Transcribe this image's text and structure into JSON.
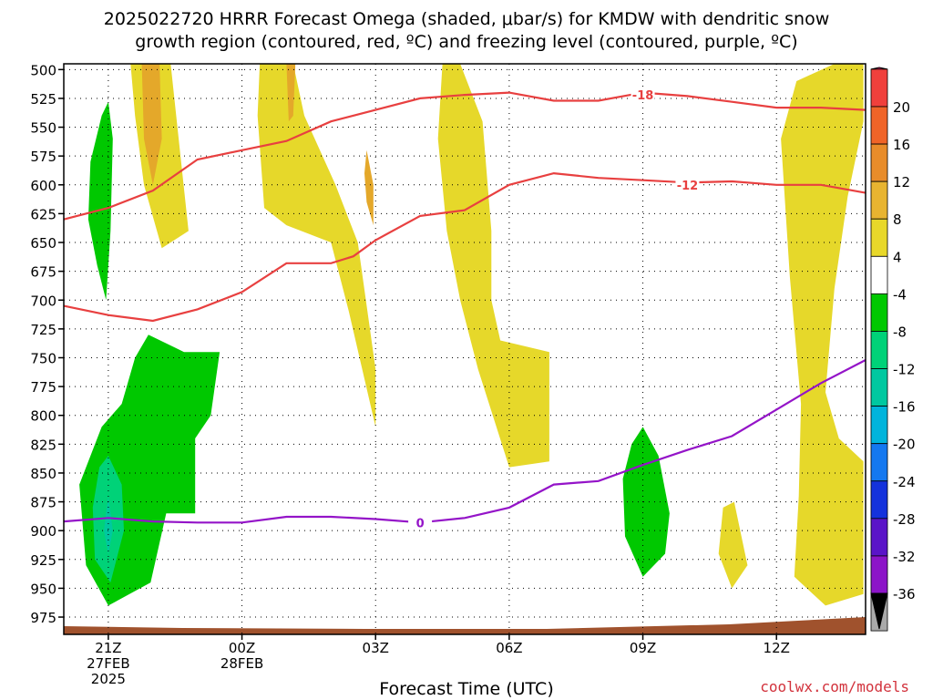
{
  "title_line1": "2025022720 HRRR Forecast Omega (shaded, μbar/s) for KMDW with dendritic snow",
  "title_line2": "growth region (contoured, red, ºC) and freezing level (contoured, purple, ºC)",
  "xlabel": "Forecast Time (UTC)",
  "credit": "coolwx.com/models",
  "chart_data": {
    "type": "heatmap",
    "title": "2025022720 HRRR Forecast Omega (shaded, μbar/s) for KMDW with dendritic snow growth region (contoured, red, ºC) and freezing level (contoured, purple, ºC)",
    "xlabel": "Forecast Time (UTC)",
    "ylabel": "",
    "x_unit": "forecast hour",
    "xlim": [
      0,
      18
    ],
    "ylim": [
      990,
      495
    ],
    "x_ticks": [
      {
        "hour": 1,
        "lines": [
          "21Z",
          "27FEB",
          "2025"
        ]
      },
      {
        "hour": 4,
        "lines": [
          "00Z",
          "28FEB"
        ]
      },
      {
        "hour": 7,
        "lines": [
          "03Z"
        ]
      },
      {
        "hour": 10,
        "lines": [
          "06Z"
        ]
      },
      {
        "hour": 13,
        "lines": [
          "09Z"
        ]
      },
      {
        "hour": 16,
        "lines": [
          "12Z"
        ]
      }
    ],
    "y_ticks": [
      500,
      525,
      550,
      575,
      600,
      625,
      650,
      675,
      700,
      725,
      750,
      775,
      800,
      825,
      850,
      875,
      900,
      925,
      950,
      975
    ],
    "grid": true,
    "colorbar": {
      "labels": [
        "20",
        "16",
        "12",
        "8",
        "4",
        "-4",
        "-8",
        "-12",
        "-16",
        "-20",
        "-24",
        "-28",
        "-32",
        "-36"
      ],
      "colors": [
        "#e8107a",
        "#f0403c",
        "#f06428",
        "#e88c2a",
        "#e8b430",
        "#e8d82a",
        "#ffffff",
        "#00c800",
        "#00d278",
        "#00c8a0",
        "#00b4dc",
        "#1478f0",
        "#1432dc",
        "#5a14c8",
        "#8c14c8",
        "#aaaaaa",
        "#000000"
      ]
    },
    "omega_areas": [
      {
        "level": "4",
        "color": "#e6d82a",
        "points": [
          [
            1.5,
            495
          ],
          [
            2.4,
            495
          ],
          [
            2.8,
            640
          ],
          [
            2.2,
            655
          ],
          [
            1.8,
            600
          ],
          [
            1.6,
            540
          ]
        ]
      },
      {
        "level": "8",
        "color": "#e4a82a",
        "points": [
          [
            1.75,
            495
          ],
          [
            2.15,
            495
          ],
          [
            2.2,
            560
          ],
          [
            2.0,
            600
          ],
          [
            1.8,
            560
          ]
        ]
      },
      {
        "level": "4",
        "color": "#e6d82a",
        "points": [
          [
            4.4,
            495
          ],
          [
            5.15,
            495
          ],
          [
            5.4,
            540
          ],
          [
            6.1,
            600
          ],
          [
            6.6,
            650
          ],
          [
            7.0,
            760
          ],
          [
            7.0,
            810
          ],
          [
            6.4,
            710
          ],
          [
            6.0,
            650
          ],
          [
            5.0,
            635
          ],
          [
            4.5,
            620
          ],
          [
            4.35,
            540
          ]
        ]
      },
      {
        "level": "8",
        "color": "#e4a82a",
        "points": [
          [
            5.0,
            495
          ],
          [
            5.2,
            495
          ],
          [
            5.15,
            540
          ],
          [
            5.05,
            545
          ]
        ]
      },
      {
        "level": "8",
        "color": "#e4a82a",
        "points": [
          [
            6.8,
            570
          ],
          [
            6.95,
            600
          ],
          [
            6.95,
            635
          ],
          [
            6.8,
            615
          ],
          [
            6.75,
            590
          ]
        ]
      },
      {
        "level": "4",
        "color": "#e6d82a",
        "points": [
          [
            8.5,
            495
          ],
          [
            8.9,
            495
          ],
          [
            9.4,
            545
          ],
          [
            9.6,
            640
          ],
          [
            9.6,
            700
          ],
          [
            9.8,
            735
          ],
          [
            10.9,
            745
          ],
          [
            10.9,
            840
          ],
          [
            10.0,
            845
          ],
          [
            9.3,
            760
          ],
          [
            8.9,
            700
          ],
          [
            8.6,
            640
          ],
          [
            8.4,
            560
          ]
        ]
      },
      {
        "level": "4",
        "color": "#e6d82a",
        "points": [
          [
            17.3,
            495
          ],
          [
            17.95,
            495
          ],
          [
            17.95,
            545
          ],
          [
            17.6,
            610
          ],
          [
            17.3,
            690
          ],
          [
            17.1,
            780
          ],
          [
            17.4,
            820
          ],
          [
            17.95,
            840
          ],
          [
            17.95,
            955
          ],
          [
            17.1,
            965
          ],
          [
            16.4,
            940
          ],
          [
            16.5,
            870
          ],
          [
            16.55,
            790
          ],
          [
            16.3,
            680
          ],
          [
            16.1,
            560
          ],
          [
            16.45,
            510
          ]
        ]
      },
      {
        "level": "4",
        "color": "#e6d82a",
        "points": [
          [
            15.05,
            875
          ],
          [
            15.35,
            930
          ],
          [
            15.0,
            950
          ],
          [
            14.7,
            920
          ],
          [
            14.8,
            880
          ]
        ]
      },
      {
        "level": "-4",
        "color": "#00c800",
        "points": [
          [
            1.0,
            528
          ],
          [
            1.1,
            560
          ],
          [
            1.05,
            640
          ],
          [
            0.95,
            700
          ],
          [
            0.75,
            670
          ],
          [
            0.55,
            630
          ],
          [
            0.6,
            580
          ],
          [
            0.85,
            540
          ]
        ]
      },
      {
        "level": "-4",
        "color": "#00c800",
        "points": [
          [
            1.9,
            730
          ],
          [
            2.7,
            745
          ],
          [
            3.5,
            745
          ],
          [
            3.3,
            800
          ],
          [
            2.95,
            820
          ],
          [
            2.95,
            885
          ],
          [
            2.3,
            885
          ],
          [
            1.95,
            945
          ],
          [
            1.0,
            965
          ],
          [
            0.5,
            930
          ],
          [
            0.35,
            860
          ],
          [
            0.85,
            810
          ],
          [
            1.3,
            790
          ],
          [
            1.6,
            750
          ]
        ]
      },
      {
        "level": "-8",
        "color": "#00d278",
        "points": [
          [
            1.0,
            835
          ],
          [
            1.3,
            860
          ],
          [
            1.35,
            900
          ],
          [
            1.05,
            945
          ],
          [
            0.7,
            925
          ],
          [
            0.65,
            880
          ],
          [
            0.8,
            845
          ]
        ]
      },
      {
        "level": "-12",
        "color": "#00c8a0",
        "points": [
          [
            1.0,
            870
          ],
          [
            1.1,
            900
          ],
          [
            1.0,
            920
          ],
          [
            0.9,
            900
          ]
        ]
      },
      {
        "level": "-4",
        "color": "#00c800",
        "points": [
          [
            13.0,
            810
          ],
          [
            13.35,
            835
          ],
          [
            13.6,
            885
          ],
          [
            13.5,
            920
          ],
          [
            13.0,
            940
          ],
          [
            12.6,
            905
          ],
          [
            12.55,
            855
          ],
          [
            12.75,
            825
          ]
        ]
      }
    ],
    "series": [
      {
        "name": "-18",
        "color": "#e84040",
        "label_at": [
          13.0,
          522
        ],
        "x": [
          0.0,
          1.0,
          2.0,
          3.0,
          4.0,
          5.0,
          6.0,
          7.0,
          8.0,
          9.0,
          10.0,
          11.0,
          12.0,
          13.0,
          14.0,
          15.0,
          16.0,
          17.0,
          18.0
        ],
        "y": [
          630,
          620,
          605,
          578,
          570,
          562,
          545,
          535,
          525,
          522,
          520,
          527,
          527,
          520,
          523,
          528,
          533,
          533,
          535
        ]
      },
      {
        "name": "-12",
        "color": "#e84040",
        "label_at": [
          14.0,
          600
        ],
        "x": [
          0.0,
          1.0,
          2.0,
          3.0,
          4.0,
          5.0,
          6.0,
          6.5,
          7.0,
          8.0,
          9.0,
          10.0,
          11.0,
          12.0,
          13.0,
          14.0,
          15.0,
          16.0,
          17.0,
          18.0
        ],
        "y": [
          705,
          713,
          718,
          708,
          693,
          668,
          668,
          662,
          648,
          627,
          622,
          600,
          590,
          594,
          596,
          598,
          597,
          600,
          600,
          607
        ]
      },
      {
        "name": "0",
        "color": "#9414c8",
        "label_at": [
          8.0,
          893
        ],
        "x": [
          0.0,
          1.0,
          2.0,
          3.0,
          4.0,
          5.0,
          6.0,
          7.0,
          8.0,
          9.0,
          10.0,
          11.0,
          12.0,
          13.0,
          14.0,
          15.0,
          16.0,
          17.0,
          18.0
        ],
        "y": [
          892,
          889,
          892,
          893,
          893,
          888,
          888,
          890,
          893,
          889,
          880,
          860,
          857,
          843,
          830,
          818,
          795,
          772,
          752
        ]
      }
    ],
    "terrain": {
      "color": "#a0522d"
    }
  }
}
